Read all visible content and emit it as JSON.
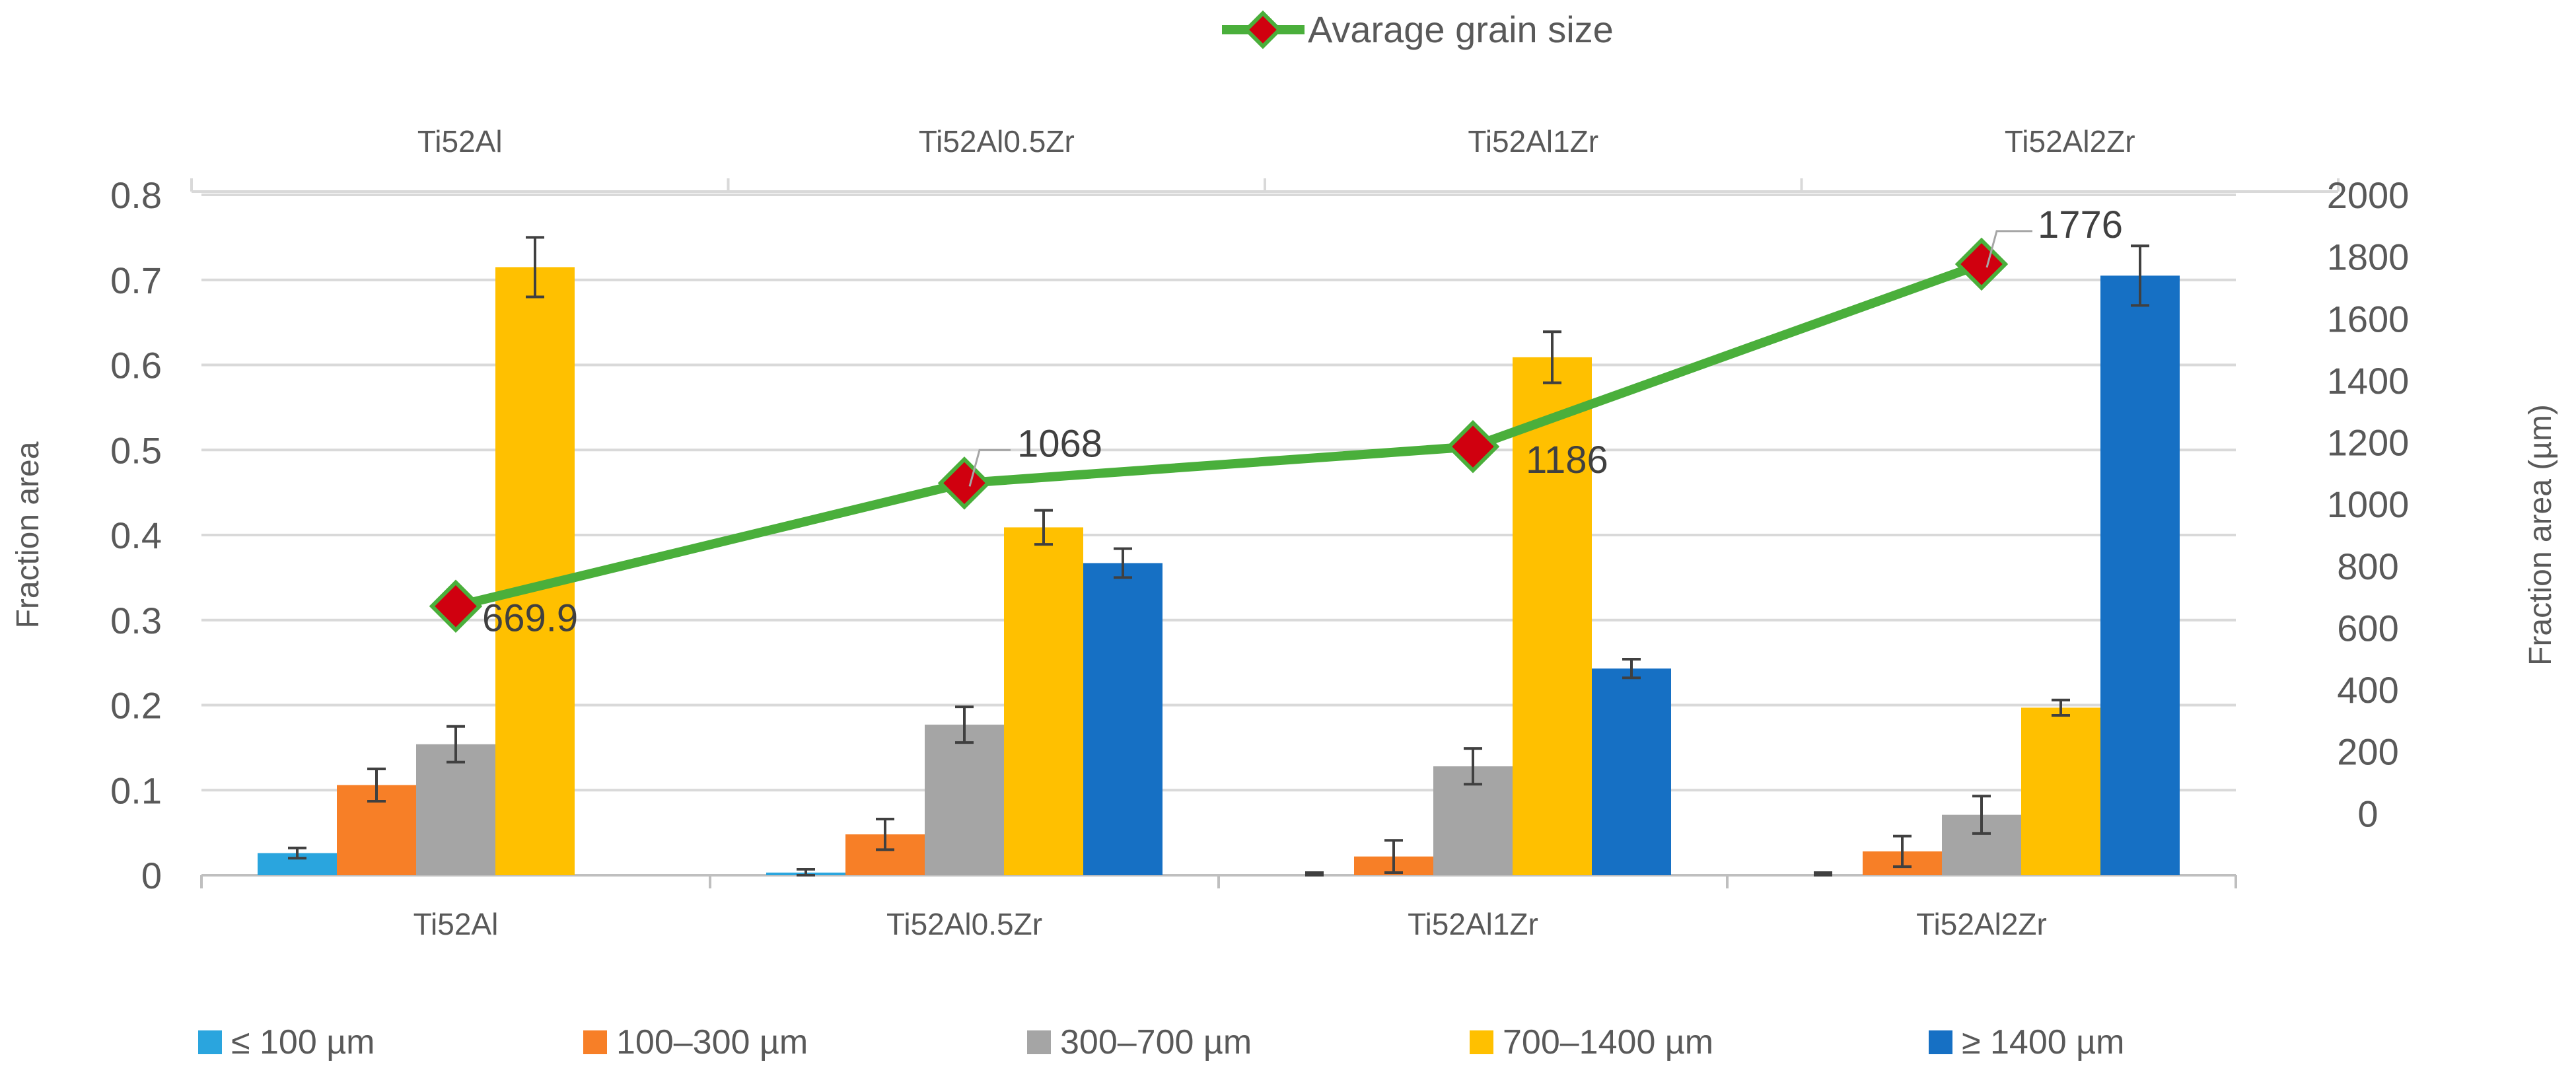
{
  "chart_data": {
    "type": "bar",
    "categories": [
      "Ti52Al",
      "Ti52Al0.5Zr",
      "Ti52Al1Zr",
      "Ti52Al2Zr"
    ],
    "top_categories": [
      "Ti52Al",
      "Ti52Al0.5Zr",
      "Ti52Al1Zr",
      "Ti52Al2Zr"
    ],
    "ylabel": "Fraction area",
    "y2label": "Fraction area (µm)",
    "ylim": [
      0,
      0.8
    ],
    "y2lim": [
      -200,
      2000
    ],
    "y_ticks": [
      0,
      0.1,
      0.2,
      0.3,
      0.4,
      0.5,
      0.6,
      0.7,
      0.8
    ],
    "y_tick_labels": [
      "0",
      "0.1",
      "0.2",
      "0.3",
      "0.4",
      "0.5",
      "0.6",
      "0.7",
      "0.8"
    ],
    "y2_ticks": [
      0,
      200,
      400,
      600,
      800,
      1000,
      1200,
      1400,
      1600,
      1800,
      2000
    ],
    "y2_tick_labels": [
      "0",
      "200",
      "400",
      "600",
      "800",
      "1000",
      "1200",
      "1400",
      "1600",
      "1800",
      "2000"
    ],
    "grid": true,
    "series": [
      {
        "name": "≤ 100 µm",
        "color": "#2aa5de",
        "values": [
          0.026,
          0.003,
          0.0,
          0.0
        ],
        "errors": [
          0.006,
          0.004,
          0.003,
          0.003
        ]
      },
      {
        "name": "100–300 µm",
        "color": "#f77f27",
        "values": [
          0.106,
          0.048,
          0.022,
          0.028
        ],
        "errors": [
          0.019,
          0.018,
          0.019,
          0.018
        ]
      },
      {
        "name": "300–700 µm",
        "color": "#a5a5a5",
        "values": [
          0.154,
          0.177,
          0.128,
          0.071
        ],
        "errors": [
          0.021,
          0.021,
          0.021,
          0.022
        ]
      },
      {
        "name": "700–1400 µm",
        "color": "#ffc000",
        "values": [
          0.715,
          0.409,
          0.609,
          0.197
        ],
        "errors": [
          0.035,
          0.02,
          0.03,
          0.009
        ]
      },
      {
        "name": "≥ 1400 µm",
        "color": "#1670c4",
        "values": [
          null,
          0.367,
          0.243,
          0.705
        ],
        "errors": [
          null,
          0.017,
          0.011,
          0.035
        ]
      }
    ],
    "line_series": {
      "name": "Avarage grain size",
      "axis": "right",
      "line_color": "#4aaf3b",
      "marker_color": "#d0000f",
      "values": [
        669.9,
        1068,
        1186,
        1776
      ],
      "labels": [
        "669.9",
        "1068",
        "1186",
        "1776"
      ]
    }
  }
}
